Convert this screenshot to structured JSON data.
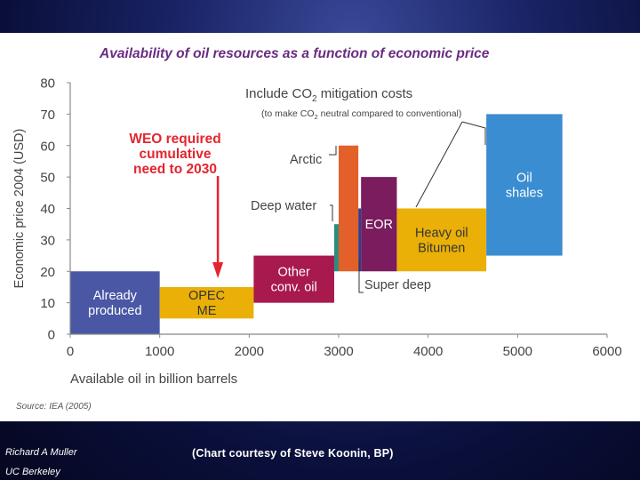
{
  "slide": {
    "author": "Richard A Muller",
    "affiliation": "UC Berkeley",
    "courtesy": "(Chart courtesy of Steve Koonin, BP)"
  },
  "colors": {
    "title": "#6a2c82",
    "annotation_red": "#e4252e",
    "axis_text": "#444444"
  },
  "chart_data": {
    "type": "bar",
    "title": "Availability of oil resources as a function of economic price",
    "xlabel": "Available oil in billion barrels",
    "ylabel": "Economic price 2004 (USD)",
    "xlim": [
      0,
      6000
    ],
    "ylim": [
      0,
      80
    ],
    "xticks": [
      0,
      1000,
      2000,
      3000,
      4000,
      5000,
      6000
    ],
    "yticks": [
      0,
      10,
      20,
      30,
      40,
      50,
      60,
      70,
      80
    ],
    "grid": false,
    "source": "Source: IEA (2005)",
    "resources": [
      {
        "name": "Already produced",
        "x0": 0,
        "x1": 1000,
        "y0": 0,
        "y1": 20,
        "color": "#4a57a5",
        "label_lines": [
          "Already",
          "produced"
        ],
        "label_color": "#ffffff"
      },
      {
        "name": "OPEC ME",
        "x0": 1000,
        "x1": 2050,
        "y0": 5,
        "y1": 15,
        "color": "#eab008",
        "label_lines": [
          "OPEC",
          "ME"
        ],
        "label_color": "#333333"
      },
      {
        "name": "Other conv. oil",
        "x0": 2050,
        "x1": 2950,
        "y0": 10,
        "y1": 25,
        "color": "#a8194e",
        "label_lines": [
          "Other",
          "conv. oil"
        ],
        "label_color": "#ffffff"
      },
      {
        "name": "Deep water",
        "x0": 2950,
        "x1": 3000,
        "y0": 20,
        "y1": 35,
        "color": "#2e8c7e",
        "label_lines": [],
        "label_color": "#ffffff"
      },
      {
        "name": "Arctic",
        "x0": 3000,
        "x1": 3220,
        "y0": 20,
        "y1": 60,
        "color": "#e3602a",
        "label_lines": [],
        "label_color": "#ffffff"
      },
      {
        "name": "Super deep",
        "x0": 3220,
        "x1": 3250,
        "y0": 20,
        "y1": 40,
        "color": "#2c3f8c",
        "label_lines": [],
        "label_color": "#ffffff"
      },
      {
        "name": "EOR",
        "x0": 3250,
        "x1": 3650,
        "y0": 20,
        "y1": 50,
        "color": "#7a1c5e",
        "label_lines": [
          "EOR"
        ],
        "label_color": "#ffffff"
      },
      {
        "name": "Heavy oil Bitumen",
        "x0": 3650,
        "x1": 4650,
        "y0": 20,
        "y1": 40,
        "color": "#eab008",
        "label_lines": [
          "Heavy oil",
          "Bitumen"
        ],
        "label_color": "#333333"
      },
      {
        "name": "Oil shales",
        "x0": 4650,
        "x1": 5500,
        "y0": 25,
        "y1": 70,
        "color": "#3a8dd0",
        "label_lines": [
          "Oil",
          "shales"
        ],
        "label_color": "#ffffff"
      }
    ],
    "annotations": {
      "weo_lines": [
        "WEO required",
        "cumulative",
        "need to 2030"
      ],
      "weo_x": 1650,
      "co2_line1": "Include CO",
      "co2_sub": "2",
      "co2_line1_end": " mitigation costs",
      "co2_line2_start": "(to make CO",
      "co2_line2_sub": "2",
      "co2_line2_end": " neutral compared to conventional)",
      "arctic": "Arctic",
      "deep_water": "Deep water",
      "super_deep": "Super deep"
    }
  }
}
